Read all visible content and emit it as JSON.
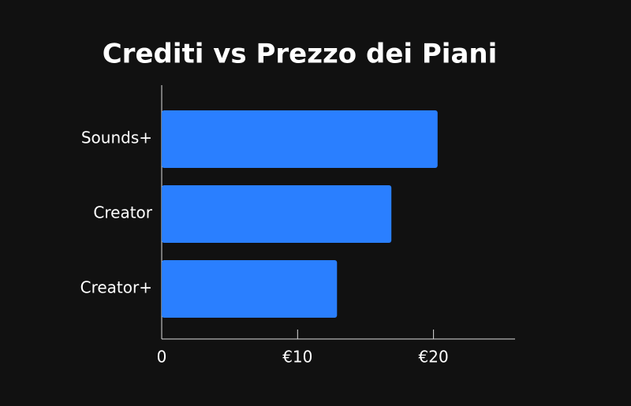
{
  "chart_data": {
    "type": "bar",
    "orientation": "horizontal",
    "title": "Crediti vs Prezzo dei Piani",
    "categories": [
      "Sounds+",
      "Creator",
      "Creator+"
    ],
    "values": [
      20.3,
      16.9,
      12.9
    ],
    "color": "#2a7fff",
    "xlim": [
      0,
      26
    ],
    "xticks": [
      0,
      {
        "value": 10,
        "label": "€10"
      },
      {
        "value": 20,
        "label": "€20"
      }
    ]
  }
}
